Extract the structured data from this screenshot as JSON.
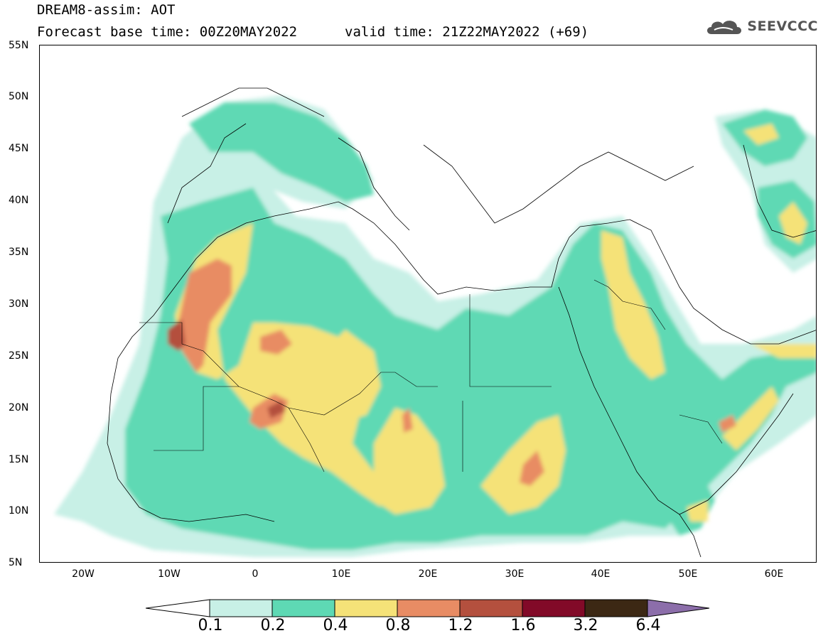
{
  "header": {
    "title_line1": "DREAM8-assim: AOT",
    "title_line2": "Forecast base time: 00Z20MAY2022",
    "valid_time": "valid time: 21Z22MAY2022 (+69)",
    "logo_text": "SEEVCCC"
  },
  "axes": {
    "lat_labels": [
      "55N",
      "50N",
      "45N",
      "40N",
      "35N",
      "30N",
      "25N",
      "20N",
      "15N",
      "10N",
      "5N"
    ],
    "lon_labels": [
      "20W",
      "10W",
      "0",
      "10E",
      "20E",
      "30E",
      "40E",
      "50E",
      "60E"
    ]
  },
  "colorbar": {
    "labels": [
      "0.1",
      "0.2",
      "0.4",
      "0.8",
      "1.2",
      "1.6",
      "3.2",
      "6.4"
    ],
    "colors": [
      "#ffffff",
      "#c8f0e6",
      "#5ed9b4",
      "#f5e278",
      "#e88c64",
      "#b4503e",
      "#820a28",
      "#3c2814",
      "#8c6eaa"
    ]
  }
}
